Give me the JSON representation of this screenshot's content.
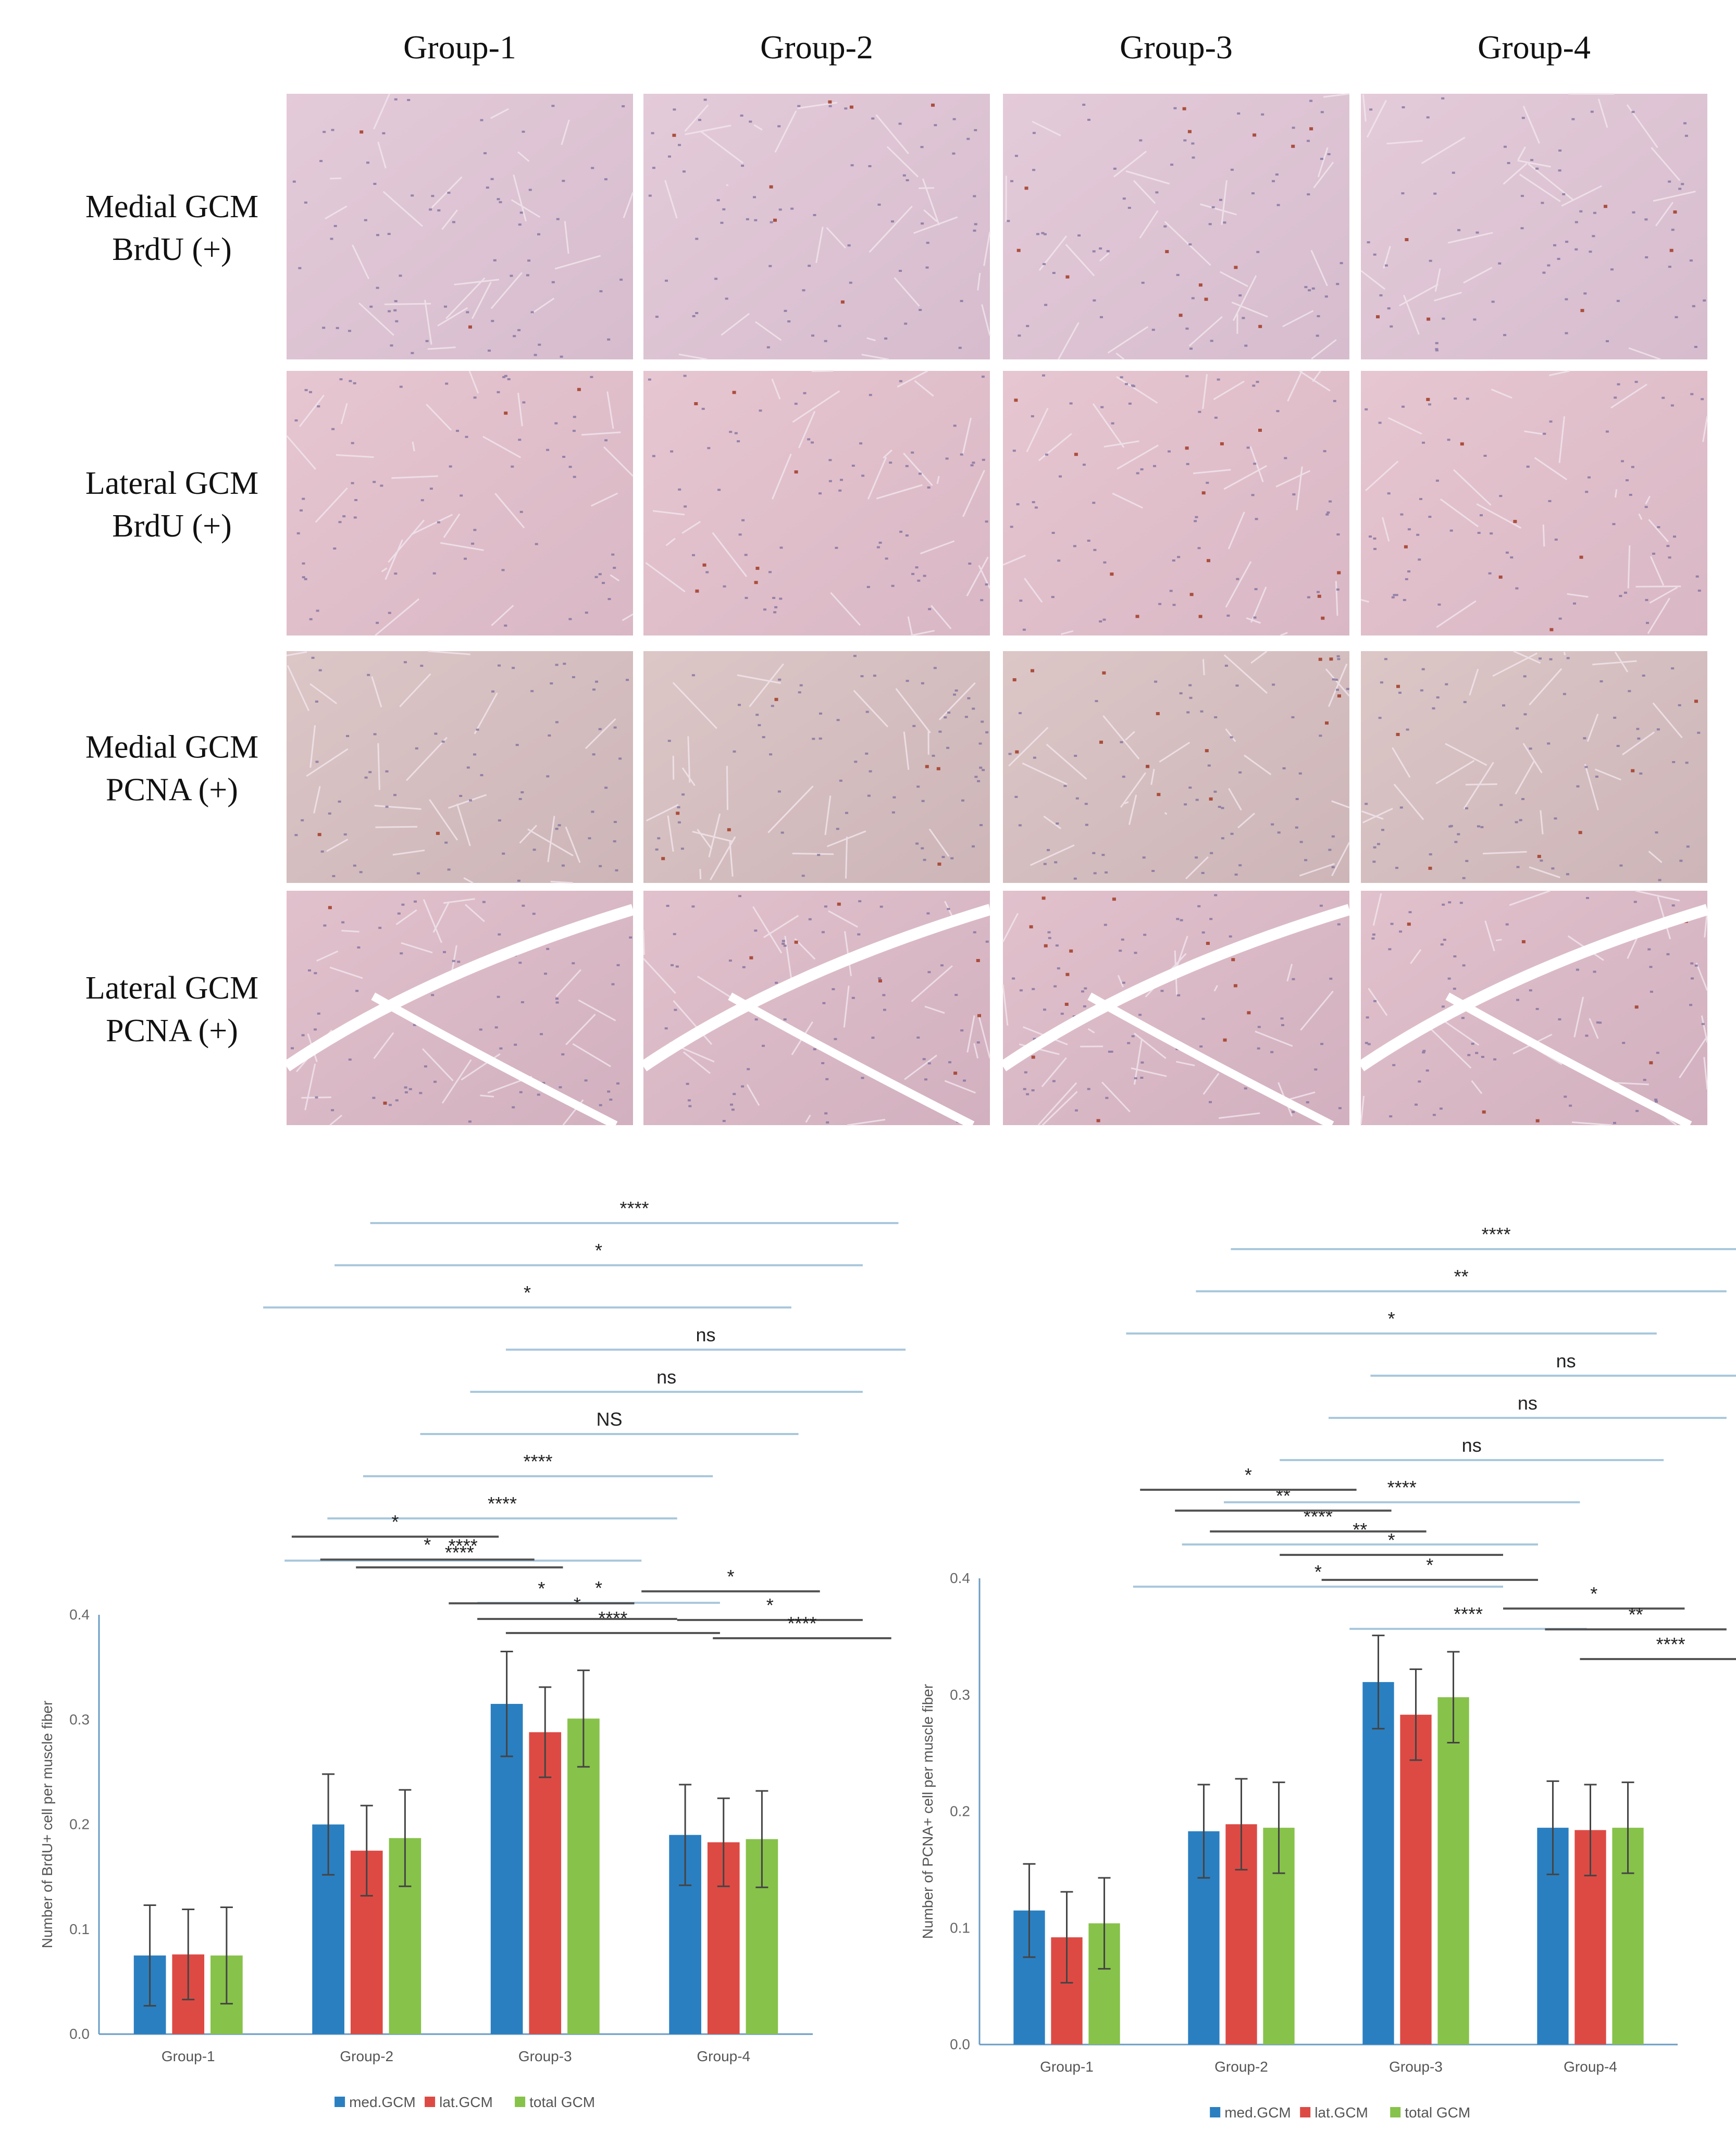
{
  "figure": {
    "columns": [
      "Group-1",
      "Group-2",
      "Group-3",
      "Group-4"
    ],
    "rows": [
      {
        "line1": "Medial GCM",
        "line2": "BrdU (+)"
      },
      {
        "line1": "Lateral GCM",
        "line2": "BrdU (+)"
      },
      {
        "line1": "Medial GCM",
        "line2": "PCNA (+)"
      },
      {
        "line1": "Lateral GCM",
        "line2": "PCNA (+)"
      }
    ]
  },
  "colors": {
    "med": "#2a7fc0",
    "lat": "#dd4a44",
    "total": "#87c24a",
    "bracket_blue": "#a9c8dc",
    "bracket_dark": "#555555"
  },
  "chart_data": [
    {
      "type": "bar",
      "categories": [
        "Group-1",
        "Group-2",
        "Group-3",
        "Group-4"
      ],
      "ylabel": "Number of BrdU+ cell per muscle fiber",
      "ylim": [
        0,
        0.4
      ],
      "yticks": [
        "0.0",
        "0.1",
        "0.2",
        "0.3",
        "0.4"
      ],
      "series": [
        {
          "name": "med.GCM",
          "values": [
            0.075,
            0.2,
            0.315,
            0.19
          ],
          "err": [
            0.048,
            0.048,
            0.05,
            0.048
          ]
        },
        {
          "name": "lat.GCM",
          "values": [
            0.076,
            0.175,
            0.288,
            0.183
          ],
          "err": [
            0.043,
            0.043,
            0.043,
            0.042
          ]
        },
        {
          "name": "total GCM",
          "values": [
            0.075,
            0.187,
            0.301,
            0.186
          ],
          "err": [
            0.046,
            0.046,
            0.046,
            0.046
          ]
        }
      ],
      "brackets_blue": [
        {
          "label": "****",
          "x1": 0.38,
          "x2": 1.12
        },
        {
          "label": "*",
          "x1": 0.33,
          "x2": 1.07
        },
        {
          "label": "*",
          "x1": 0.23,
          "x2": 0.97
        },
        {
          "label": "ns",
          "x1": 0.57,
          "x2": 1.13
        },
        {
          "label": "ns",
          "x1": 0.52,
          "x2": 1.07
        },
        {
          "label": "NS",
          "x1": 0.45,
          "x2": 0.98
        },
        {
          "label": "****",
          "x1": 0.37,
          "x2": 0.86
        },
        {
          "label": "****",
          "x1": 0.32,
          "x2": 0.81
        },
        {
          "label": "****",
          "x1": 0.26,
          "x2": 0.76
        },
        {
          "label": "*",
          "x1": 0.53,
          "x2": 0.87
        }
      ],
      "brackets_dark": [
        {
          "label": "****",
          "x1": 0.57,
          "x2": 0.87
        },
        {
          "label": "*",
          "x1": 0.53,
          "x2": 0.81
        },
        {
          "label": "*",
          "x1": 0.49,
          "x2": 0.75
        },
        {
          "label": "****",
          "x1": 0.36,
          "x2": 0.65
        },
        {
          "label": "*",
          "x1": 0.31,
          "x2": 0.61
        },
        {
          "label": "*",
          "x1": 0.27,
          "x2": 0.56
        },
        {
          "label": "*",
          "x1": 0.76,
          "x2": 1.01
        },
        {
          "label": "*",
          "x1": 0.81,
          "x2": 1.07
        },
        {
          "label": "****",
          "x1": 0.86,
          "x2": 1.11
        }
      ]
    },
    {
      "type": "bar",
      "categories": [
        "Group-1",
        "Group-2",
        "Group-3",
        "Group-4"
      ],
      "ylabel": "Number of PCNA+ cell per muscle fiber",
      "ylim": [
        0,
        0.4
      ],
      "yticks": [
        "0.0",
        "0.1",
        "0.2",
        "0.3",
        "0.4"
      ],
      "series": [
        {
          "name": "med.GCM",
          "values": [
            0.115,
            0.183,
            0.311,
            0.186
          ],
          "err": [
            0.04,
            0.04,
            0.04,
            0.04
          ]
        },
        {
          "name": "lat.GCM",
          "values": [
            0.092,
            0.189,
            0.283,
            0.184
          ],
          "err": [
            0.039,
            0.039,
            0.039,
            0.039
          ]
        },
        {
          "name": "total GCM",
          "values": [
            0.104,
            0.186,
            0.298,
            0.186
          ],
          "err": [
            0.039,
            0.039,
            0.039,
            0.039
          ]
        }
      ],
      "brackets_blue": [
        {
          "label": "****",
          "x1": 0.36,
          "x2": 1.12
        },
        {
          "label": "**",
          "x1": 0.31,
          "x2": 1.07
        },
        {
          "label": "*",
          "x1": 0.21,
          "x2": 0.97
        },
        {
          "label": "ns",
          "x1": 0.56,
          "x2": 1.12
        },
        {
          "label": "ns",
          "x1": 0.5,
          "x2": 1.07
        },
        {
          "label": "ns",
          "x1": 0.43,
          "x2": 0.98
        },
        {
          "label": "****",
          "x1": 0.35,
          "x2": 0.86
        },
        {
          "label": "**",
          "x1": 0.29,
          "x2": 0.8
        },
        {
          "label": "*",
          "x1": 0.22,
          "x2": 0.75
        },
        {
          "label": "****",
          "x1": 0.53,
          "x2": 0.87
        }
      ],
      "brackets_dark": [
        {
          "label": "*",
          "x1": 0.49,
          "x2": 0.8
        },
        {
          "label": "*",
          "x1": 0.43,
          "x2": 0.75
        },
        {
          "label": "****",
          "x1": 0.33,
          "x2": 0.64
        },
        {
          "label": "**",
          "x1": 0.28,
          "x2": 0.59
        },
        {
          "label": "*",
          "x1": 0.23,
          "x2": 0.54
        },
        {
          "label": "*",
          "x1": 0.75,
          "x2": 1.01
        },
        {
          "label": "**",
          "x1": 0.81,
          "x2": 1.07
        },
        {
          "label": "****",
          "x1": 0.86,
          "x2": 1.12
        }
      ]
    }
  ]
}
